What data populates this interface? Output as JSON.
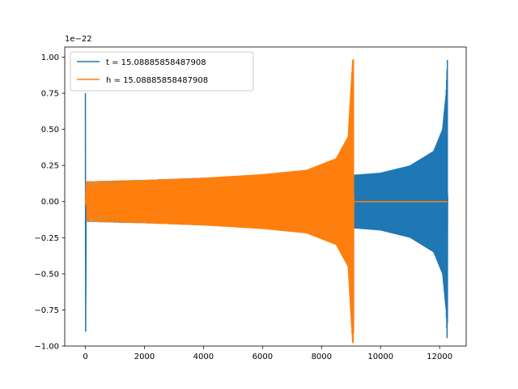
{
  "chart_data": {
    "type": "line",
    "title": "",
    "xlabel": "",
    "ylabel": "",
    "y_offset_label": "1e−22",
    "xlim": [
      -700,
      12900
    ],
    "ylim": [
      -1.0,
      1.07
    ],
    "x_ticks": [
      0,
      2000,
      4000,
      6000,
      8000,
      10000,
      12000
    ],
    "x_tick_labels": [
      "0",
      "2000",
      "4000",
      "6000",
      "8000",
      "10000",
      "12000"
    ],
    "y_ticks": [
      -1.0,
      -0.75,
      -0.5,
      -0.25,
      0.0,
      0.25,
      0.5,
      0.75,
      1.0
    ],
    "y_tick_labels": [
      "−1.00",
      "−0.75",
      "−0.50",
      "−0.25",
      "0.00",
      "0.25",
      "0.50",
      "0.75",
      "1.00"
    ],
    "grid": false,
    "legend_position": "top-left",
    "series": [
      {
        "name": "t = 15.08885858487908",
        "color": "#1f77b4",
        "x_start": 0,
        "x_end": 12260,
        "initial_spike": {
          "x": 0,
          "max": 0.75,
          "min": -0.9
        },
        "envelope": [
          {
            "x": 0,
            "amp": 0.14
          },
          {
            "x": 2000,
            "amp": 0.15
          },
          {
            "x": 4000,
            "amp": 0.165
          },
          {
            "x": 6000,
            "amp": 0.185
          },
          {
            "x": 8000,
            "amp": 0.21
          },
          {
            "x": 9050,
            "amp": 0.185
          },
          {
            "x": 10000,
            "amp": 0.2
          },
          {
            "x": 11000,
            "amp": 0.25
          },
          {
            "x": 11800,
            "amp": 0.35
          },
          {
            "x": 12100,
            "amp": 0.5
          },
          {
            "x": 12220,
            "amp": 0.75
          },
          {
            "x": 12260,
            "amp": 0.98
          }
        ],
        "final_peak": {
          "x": 12260,
          "max": 0.98,
          "min": -0.84
        }
      },
      {
        "name": "h = 15.08885858487908",
        "color": "#ff7f0e",
        "x_start": 0,
        "x_end": 12260,
        "initial_spike": {
          "x": 0,
          "max": 0.02,
          "min": -0.02
        },
        "envelope": [
          {
            "x": 0,
            "amp": 0.14
          },
          {
            "x": 2000,
            "amp": 0.15
          },
          {
            "x": 4000,
            "amp": 0.165
          },
          {
            "x": 6000,
            "amp": 0.19
          },
          {
            "x": 7500,
            "amp": 0.22
          },
          {
            "x": 8500,
            "amp": 0.3
          },
          {
            "x": 8900,
            "amp": 0.45
          },
          {
            "x": 9050,
            "amp": 0.98
          }
        ],
        "final_peak": {
          "x": 9080,
          "max": 0.98,
          "min": -0.91
        },
        "flat_after": {
          "x_from": 9100,
          "x_to": 12260,
          "value": 0.0
        }
      }
    ]
  }
}
